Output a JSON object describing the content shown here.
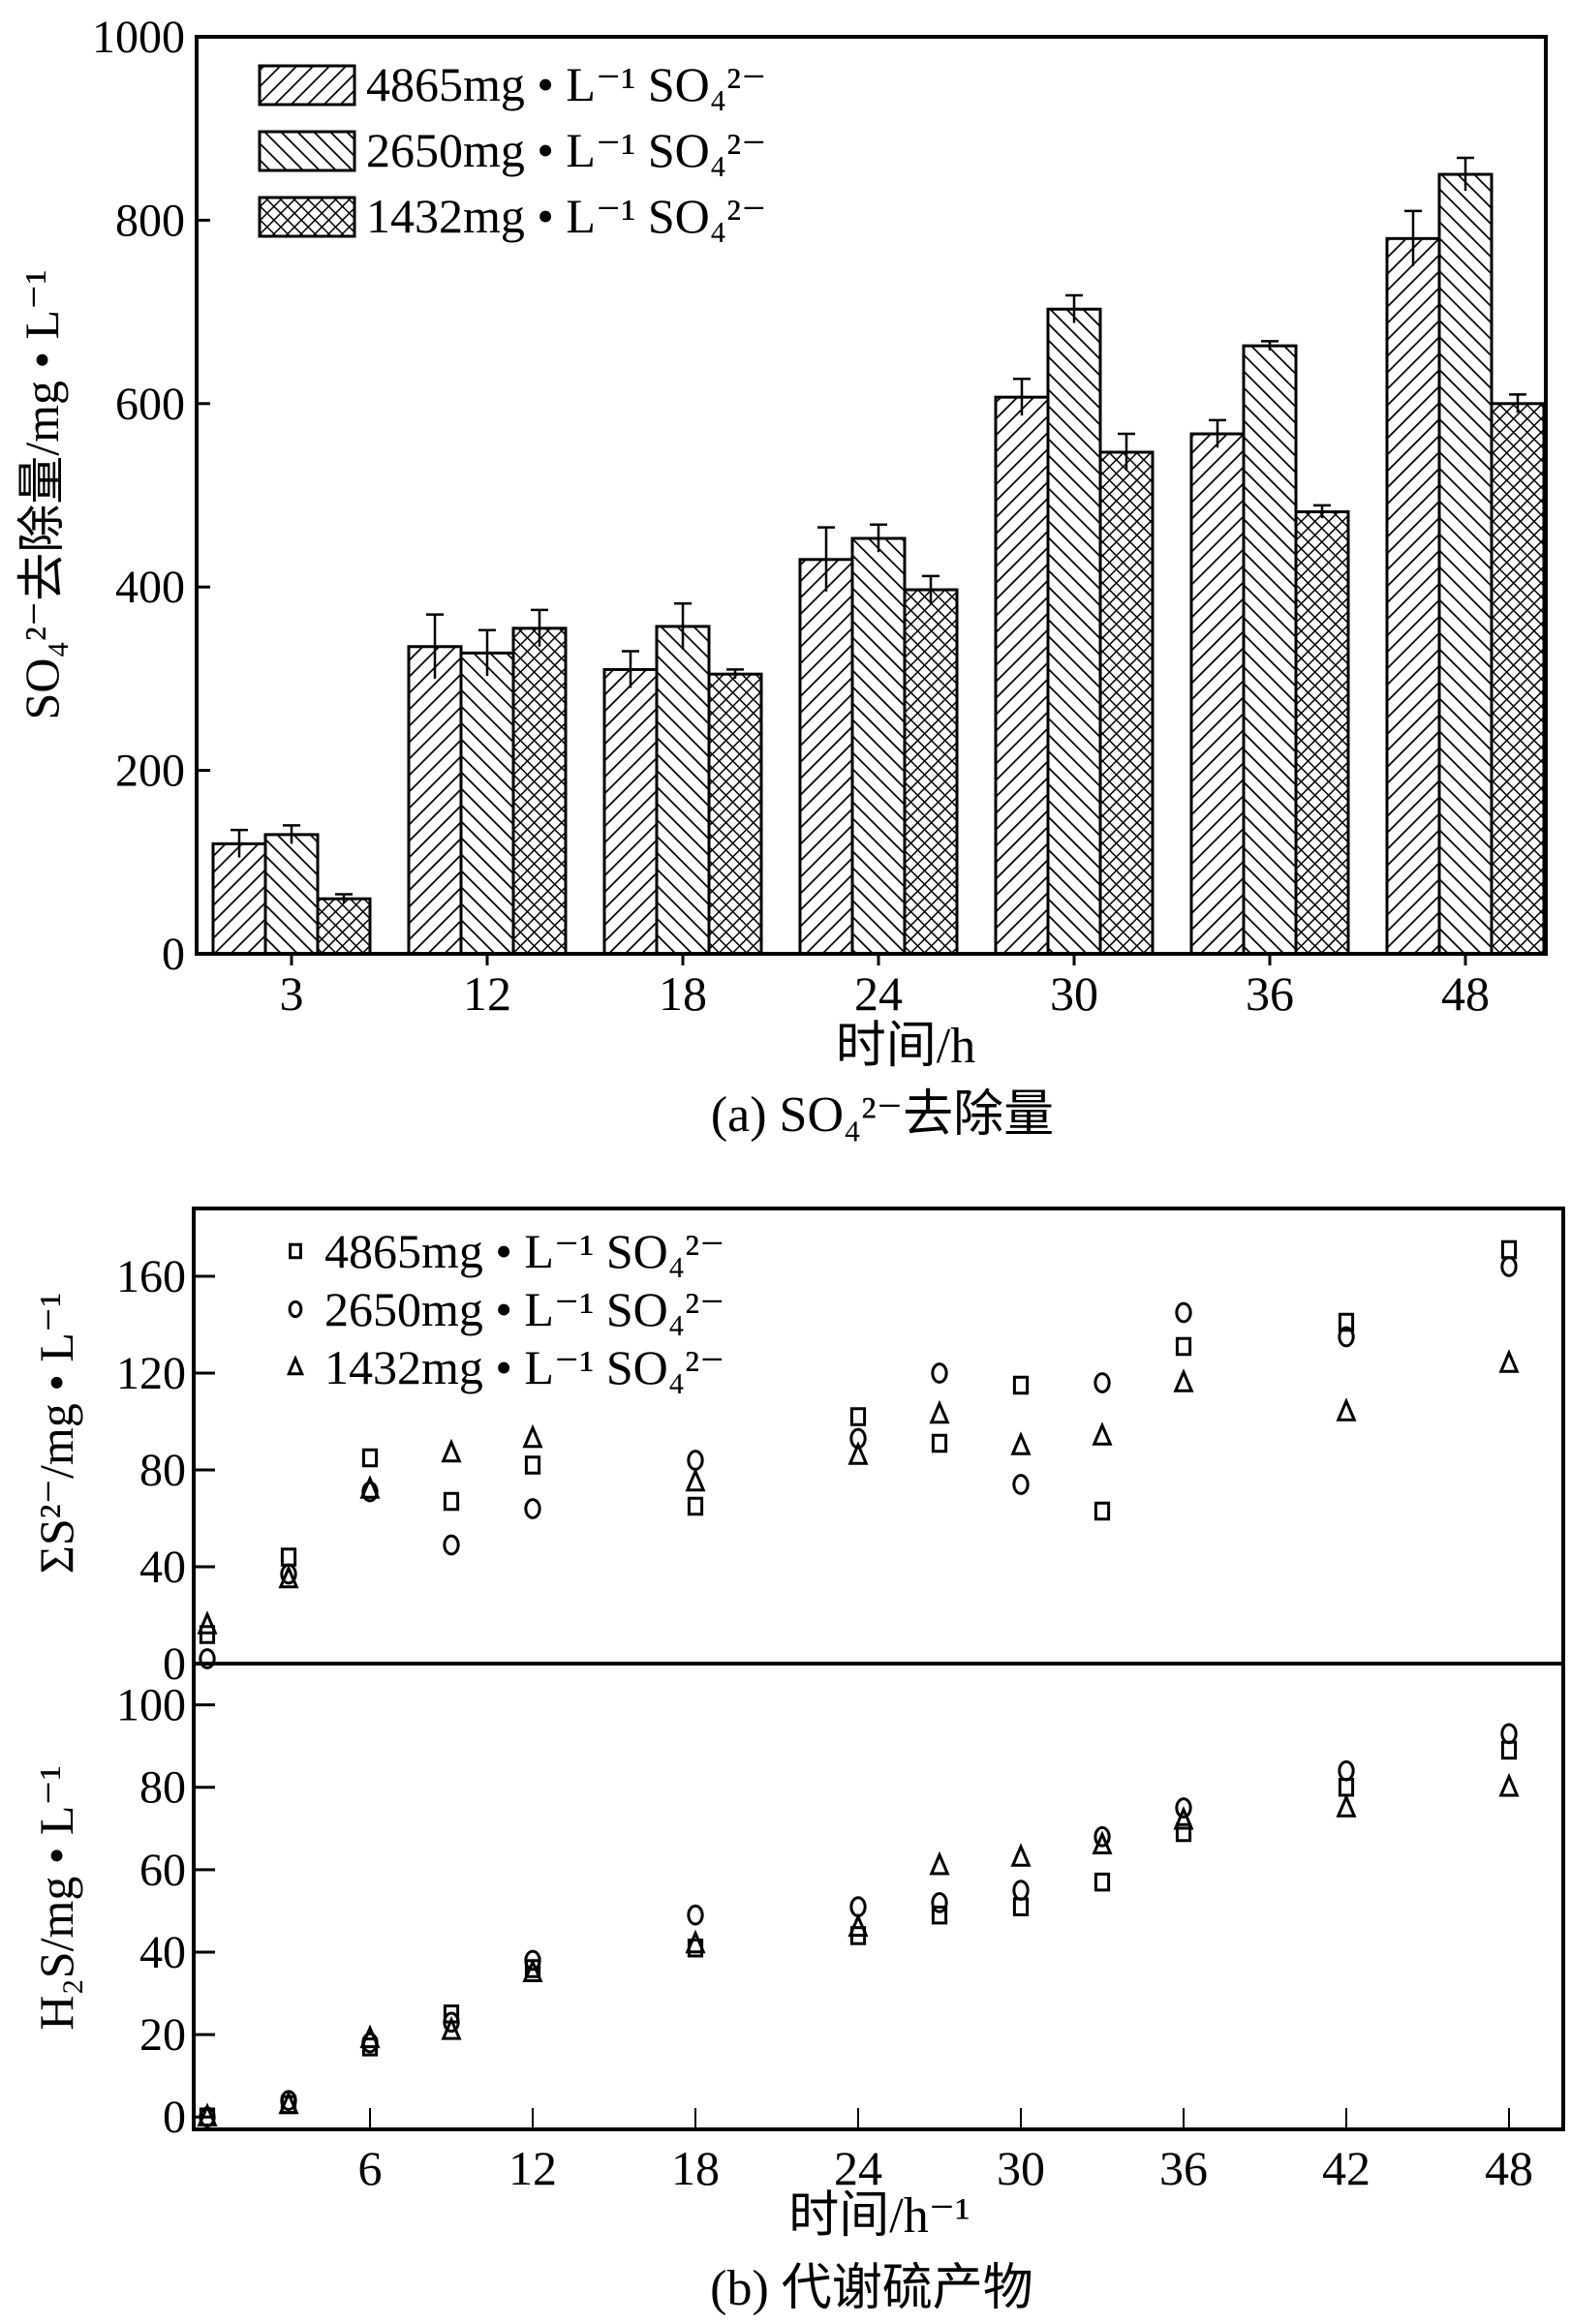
{
  "chart_data": [
    {
      "type": "bar",
      "caption": "(a) SO₄²⁻去除量",
      "xlabel": "时间/h",
      "ylabel": "SO₄²⁻去除量/mg • L⁻¹",
      "ylim": [
        0,
        1000
      ],
      "yticks": [
        0,
        200,
        400,
        600,
        800,
        1000
      ],
      "categories": [
        "3",
        "12",
        "18",
        "24",
        "30",
        "36",
        "48"
      ],
      "legend_position": "top-left",
      "series": [
        {
          "name": "4865mg • L⁻¹ SO₄²⁻",
          "pattern": "diagonal-up",
          "values": [
            120,
            335,
            310,
            430,
            607,
            567,
            780
          ],
          "errors": [
            15,
            35,
            20,
            35,
            20,
            15,
            30
          ]
        },
        {
          "name": "2650mg • L⁻¹ SO₄²⁻",
          "pattern": "diagonal-down",
          "values": [
            130,
            328,
            357,
            453,
            703,
            663,
            850
          ],
          "errors": [
            10,
            25,
            25,
            15,
            15,
            5,
            18
          ]
        },
        {
          "name": "1432mg • L⁻¹ SO₄²⁻",
          "pattern": "crosshatch",
          "values": [
            60,
            355,
            305,
            397,
            547,
            482,
            600
          ],
          "errors": [
            5,
            20,
            5,
            15,
            20,
            7,
            10
          ]
        }
      ]
    },
    {
      "type": "scatter",
      "ylabel": "ΣS²⁻/mg • L⁻¹",
      "ylim": [
        0,
        188
      ],
      "yticks": [
        0,
        40,
        80,
        120,
        160
      ],
      "xlim": [
        -0.5,
        50
      ],
      "x": [
        0,
        3,
        6,
        9,
        12,
        18,
        24,
        27,
        30,
        33,
        36,
        42,
        48
      ],
      "legend_position": "top-left",
      "series": [
        {
          "name": "4865mg • L⁻¹ SO₄²⁻",
          "marker": "square",
          "values": [
            12,
            44,
            85,
            67,
            82,
            65,
            102,
            91,
            115,
            63,
            131,
            141,
            171
          ]
        },
        {
          "name": "2650mg • L⁻¹ SO₄²⁻",
          "marker": "circle",
          "values": [
            2,
            37,
            71,
            49,
            64,
            84,
            93,
            120,
            74,
            116,
            145,
            135,
            164
          ]
        },
        {
          "name": "1432mg • L⁻¹ SO₄²⁻",
          "marker": "triangle",
          "values": [
            16,
            35,
            72,
            87,
            93,
            75,
            86,
            103,
            90,
            94,
            116,
            104,
            124
          ]
        }
      ]
    },
    {
      "type": "scatter",
      "caption": "(b) 代谢硫产物",
      "xlabel": "时间/h⁻¹",
      "ylabel": "H₂S/mg • L⁻¹",
      "ylim": [
        -3,
        110
      ],
      "yticks": [
        0,
        20,
        40,
        60,
        80,
        100
      ],
      "xlim": [
        -0.5,
        50
      ],
      "xticks": [
        6,
        12,
        18,
        24,
        30,
        36,
        42,
        48
      ],
      "x": [
        0,
        3,
        6,
        9,
        12,
        18,
        24,
        27,
        30,
        33,
        36,
        42,
        48
      ],
      "series": [
        {
          "name": "4865mg • L⁻¹ SO₄²⁻",
          "marker": "square",
          "values": [
            0,
            3,
            17,
            25,
            36,
            41,
            44,
            49,
            51,
            57,
            69,
            80,
            89
          ]
        },
        {
          "name": "2650mg • L⁻¹ SO₄²⁻",
          "marker": "circle",
          "values": [
            0,
            4,
            18,
            23,
            38,
            49,
            51,
            52,
            55,
            68,
            75,
            84,
            93
          ]
        },
        {
          "name": "1432mg • L⁻¹ SO₄²⁻",
          "marker": "triangle",
          "values": [
            0,
            3,
            19,
            21,
            35,
            42,
            46,
            61,
            63,
            66,
            72,
            75,
            80
          ]
        }
      ]
    }
  ]
}
